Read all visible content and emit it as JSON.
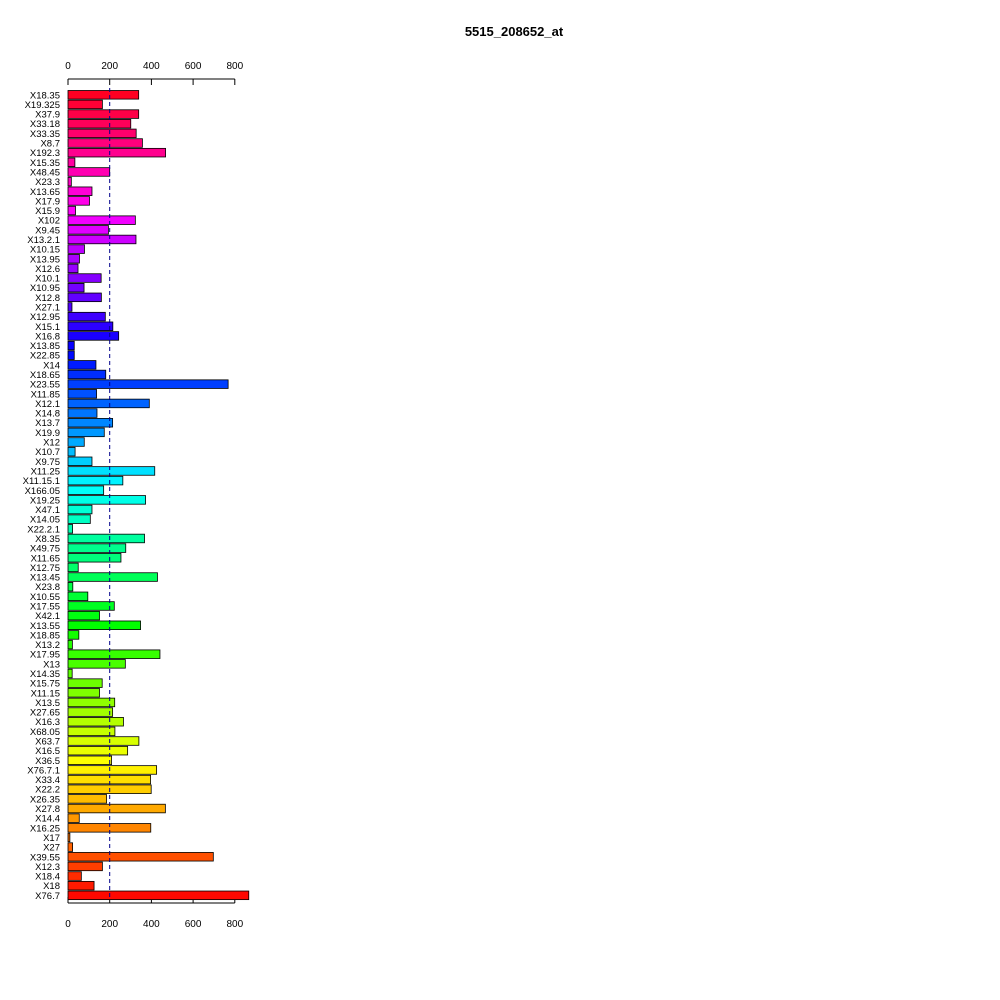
{
  "chart_data": {
    "type": "bar",
    "orientation": "horizontal",
    "title": "5515_208652_at",
    "xlabel": "",
    "ylabel": "",
    "xlim": [
      0,
      865
    ],
    "x_ticks": [
      0,
      200,
      400,
      600,
      800
    ],
    "reference_line": 200,
    "grid": false,
    "legend": "none",
    "color_scheme": "rainbow",
    "categories": [
      "X18.35",
      "X19.325",
      "X37.9",
      "X33.18",
      "X33.35",
      "X8.7",
      "X192.3",
      "X15.35",
      "X48.45",
      "X23.3",
      "X13.65",
      "X17.9",
      "X15.9",
      "X102",
      "X9.45",
      "X13.2.1",
      "X10.15",
      "X13.95",
      "X12.6",
      "X10.1",
      "X10.95",
      "X12.8",
      "X27.1",
      "X12.95",
      "X15.1",
      "X16.8",
      "X13.85",
      "X22.85",
      "X14",
      "X18.65",
      "X23.55",
      "X11.85",
      "X12.1",
      "X14.8",
      "X13.7",
      "X19.9",
      "X12",
      "X10.7",
      "X9.75",
      "X11.25",
      "X11.15.1",
      "X166.05",
      "X19.25",
      "X47.1",
      "X14.05",
      "X22.2.1",
      "X8.35",
      "X49.75",
      "X11.65",
      "X12.75",
      "X13.45",
      "X23.8",
      "X10.55",
      "X17.55",
      "X42.1",
      "X13.55",
      "X18.85",
      "X13.2",
      "X17.95",
      "X13",
      "X14.35",
      "X15.75",
      "X11.15",
      "X13.5",
      "X27.65",
      "X16.3",
      "X68.05",
      "X63.7",
      "X16.5",
      "X36.5",
      "X76.7.1",
      "X33.4",
      "X22.2",
      "X26.35",
      "X27.8",
      "X14.4",
      "X16.25",
      "X17",
      "X27",
      "X39.55",
      "X12.3",
      "X18.4",
      "X18",
      "X76.7"
    ],
    "values": [
      339,
      165,
      339,
      301,
      327,
      357,
      468,
      33,
      200,
      16,
      115,
      103,
      36,
      323,
      194,
      326,
      79,
      55,
      48,
      159,
      77,
      160,
      19,
      179,
      215,
      243,
      30,
      30,
      134,
      181,
      768,
      137,
      390,
      139,
      214,
      174,
      78,
      34,
      115,
      416,
      263,
      171,
      372,
      115,
      107,
      22,
      367,
      277,
      254,
      49,
      429,
      23,
      95,
      222,
      151,
      348,
      52,
      21,
      441,
      275,
      20,
      164,
      151,
      224,
      214,
      266,
      225,
      340,
      286,
      209,
      425,
      396,
      399,
      185,
      467,
      54,
      397,
      9,
      22,
      697,
      165,
      64,
      125,
      867
    ],
    "bar_colors": [
      "#FF0022",
      "#FF0035",
      "#FF0047",
      "#FF0059",
      "#FF006B",
      "#FF007C",
      "#FF008E",
      "#FF00A0",
      "#FF00B2",
      "#FF00C4",
      "#FF00D6",
      "#FF00E8",
      "#FF00FA",
      "#F100FF",
      "#DF00FF",
      "#CD00FF",
      "#BB00FF",
      "#A900FF",
      "#9700FF",
      "#8500FF",
      "#7400FF",
      "#6200FF",
      "#5000FF",
      "#3E00FF",
      "#2C00FF",
      "#1A00FF",
      "#0800FF",
      "#0009FF",
      "#001BFF",
      "#002DFF",
      "#003FFF",
      "#0051FF",
      "#0063FF",
      "#0075FF",
      "#0086FF",
      "#0098FF",
      "#00AAFF",
      "#00BCFF",
      "#00CEFF",
      "#00E0FF",
      "#00F2FF",
      "#00FFF9",
      "#00FFE7",
      "#00FFD5",
      "#00FFC3",
      "#00FFB1",
      "#00FF9F",
      "#00FF8D",
      "#00FF7C",
      "#00FF6A",
      "#00FF58",
      "#00FF46",
      "#00FF34",
      "#00FF22",
      "#00FF10",
      "#01FF00",
      "#13FF00",
      "#25FF00",
      "#37FF00",
      "#49FF00",
      "#5BFF00",
      "#6DFF00",
      "#7FFF00",
      "#90FF00",
      "#A2FF00",
      "#B4FF00",
      "#C6FF00",
      "#D8FF00",
      "#EAFF00",
      "#FCFF00",
      "#FFF100",
      "#FFDF00",
      "#FFCD00",
      "#FFBB00",
      "#FFA900",
      "#FF9700",
      "#FF8500",
      "#FF7300",
      "#FF6200",
      "#FF5000",
      "#FF3E00",
      "#FF2C00",
      "#FF1A00",
      "#FF0800"
    ]
  }
}
